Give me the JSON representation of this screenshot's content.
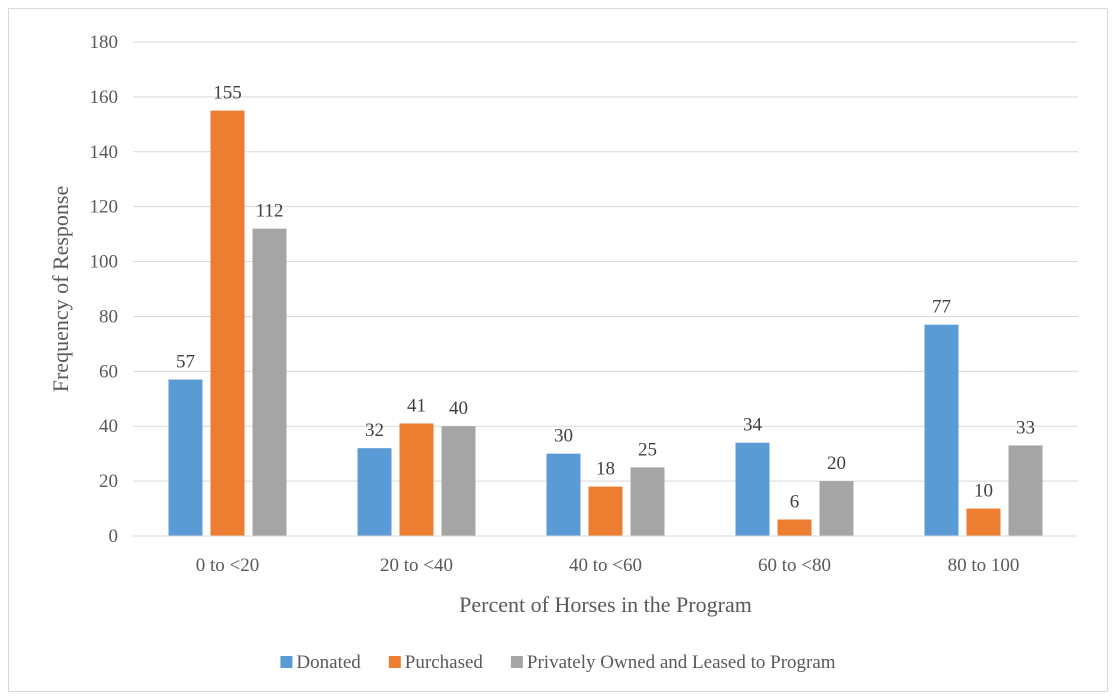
{
  "chart_data": {
    "type": "bar",
    "title": "",
    "xlabel": "Percent of Horses in the Program",
    "ylabel": "Frequency of Response",
    "ylim": [
      0,
      180
    ],
    "yticks": [
      0,
      20,
      40,
      60,
      80,
      100,
      120,
      140,
      160,
      180
    ],
    "grid": true,
    "legend_position": "bottom",
    "categories": [
      "0 to <20",
      "20 to <40",
      "40 to <60",
      "60 to <80",
      "80 to 100"
    ],
    "series": [
      {
        "name": "Donated",
        "color": "#5b9bd5",
        "values": [
          57,
          32,
          30,
          34,
          77
        ]
      },
      {
        "name": "Purchased",
        "color": "#ed7d31",
        "values": [
          155,
          41,
          18,
          6,
          10
        ]
      },
      {
        "name": "Privately Owned and Leased to Program",
        "color": "#a5a5a5",
        "values": [
          112,
          40,
          25,
          20,
          33
        ]
      }
    ]
  }
}
